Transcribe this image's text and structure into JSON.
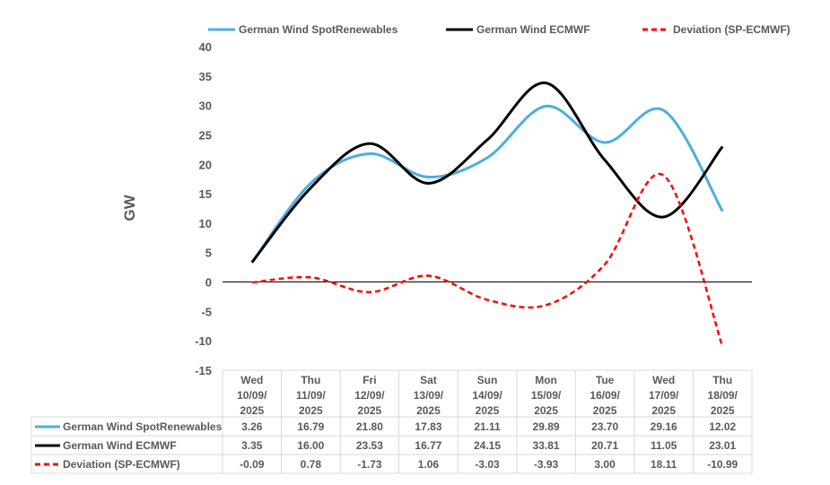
{
  "chart_data": {
    "type": "line",
    "title": "",
    "xlabel": "",
    "ylabel": "GW",
    "ylim": [
      -15,
      40
    ],
    "yticks": [
      40,
      35,
      30,
      25,
      20,
      15,
      10,
      5,
      0,
      -5,
      -10,
      -15
    ],
    "legend_position": "top",
    "categories": [
      [
        "Wed",
        "10/09/",
        "2025"
      ],
      [
        "Thu",
        "11/09/",
        "2025"
      ],
      [
        "Fri",
        "12/09/",
        "2025"
      ],
      [
        "Sat",
        "13/09/",
        "2025"
      ],
      [
        "Sun",
        "14/09/",
        "2025"
      ],
      [
        "Mon",
        "15/09/",
        "2025"
      ],
      [
        "Tue",
        "16/09/",
        "2025"
      ],
      [
        "Wed",
        "17/09/",
        "2025"
      ],
      [
        "Thu",
        "18/09/",
        "2025"
      ]
    ],
    "series": [
      {
        "name": "German Wind SpotRenewables",
        "color": "#4eaee0",
        "dash": false,
        "values": [
          3.26,
          16.79,
          21.8,
          17.83,
          21.11,
          29.89,
          23.7,
          29.16,
          12.02
        ],
        "labels": [
          "3.26",
          "16.79",
          "21.80",
          "17.83",
          "21.11",
          "29.89",
          "23.70",
          "29.16",
          "12.02"
        ]
      },
      {
        "name": "German Wind ECMWF",
        "color": "#000000",
        "dash": false,
        "values": [
          3.35,
          16.0,
          23.53,
          16.77,
          24.15,
          33.81,
          20.71,
          11.05,
          23.01
        ],
        "labels": [
          "3.35",
          "16.00",
          "23.53",
          "16.77",
          "24.15",
          "33.81",
          "20.71",
          "11.05",
          "23.01"
        ]
      },
      {
        "name": "Deviation (SP-ECMWF)",
        "color": "#ff0000",
        "dash": true,
        "values": [
          -0.09,
          0.78,
          -1.73,
          1.06,
          -3.03,
          -3.93,
          3.0,
          18.11,
          -10.99
        ],
        "labels": [
          "-0.09",
          "0.78",
          "-1.73",
          "1.06",
          "-3.03",
          "-3.93",
          "3.00",
          "18.11",
          "-10.99"
        ]
      }
    ]
  }
}
